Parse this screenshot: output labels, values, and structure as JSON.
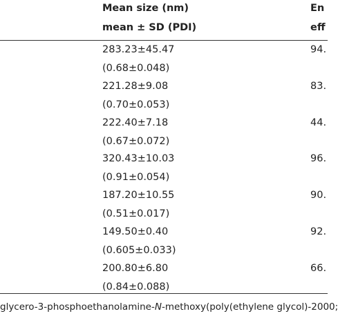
{
  "table": {
    "header": {
      "col1": [
        "Mean size (nm)",
        "mean ± SD (PDI)"
      ],
      "col2": [
        "En",
        "eff"
      ]
    },
    "rows": [
      [
        "283.23±45.47",
        "(0.68±0.048)",
        "94."
      ],
      [
        "221.28±9.08",
        "(0.70±0.053)",
        "83."
      ],
      [
        "222.40±7.18",
        "(0.67±0.072)",
        "44."
      ],
      [
        "320.43±10.03",
        "(0.91±0.054)",
        "96."
      ],
      [
        "187.20±10.55",
        "(0.51±0.017)",
        "90."
      ],
      [
        "149.50±0.40",
        "(0.605±0.033)",
        "92."
      ],
      [
        "200.80±6.80",
        "(0.84±0.088)",
        "66."
      ]
    ]
  },
  "footnote": {
    "parts": [
      "glycero-3-phosphoethanolamine-",
      "N",
      "-methoxy(poly(ethylene glycol)-2000;"
    ]
  }
}
